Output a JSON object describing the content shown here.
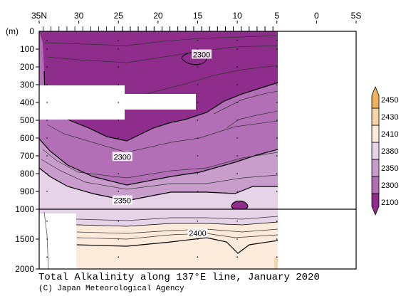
{
  "chart_data": {
    "type": "heatmap",
    "title": "Total Alkalinity along 137°E line, January 2020",
    "credit": "(C) Japan Meteorological Agency",
    "x_axis": {
      "ticks": [
        "35N",
        "30",
        "25",
        "20",
        "15",
        "10",
        "5",
        "0",
        "5S"
      ],
      "tick_values": [
        35,
        30,
        25,
        20,
        15,
        10,
        5,
        0,
        -5
      ],
      "range": [
        35,
        -5
      ]
    },
    "y_axis": {
      "unit_label": "(m)",
      "ticks": [
        "0",
        "100",
        "200",
        "300",
        "400",
        "500",
        "600",
        "700",
        "800",
        "900",
        "1000",
        "1500",
        "2000"
      ],
      "upper_panel_range": [
        0,
        1000
      ],
      "lower_panel_range": [
        1000,
        2000
      ]
    },
    "colorbar": {
      "levels": [
        "2100",
        "2300",
        "2350",
        "2380",
        "2410",
        "2430",
        "2450"
      ],
      "colors": [
        "#8e2d8c",
        "#b36fb6",
        "#c89ccb",
        "#e6d3e8",
        "#fceadb",
        "#f7d4a6",
        "#f0b15e"
      ]
    },
    "contour_labels": [
      {
        "text": "2300",
        "lat": 14.5,
        "depth": 130
      },
      {
        "text": "2300",
        "lat": 24.5,
        "depth": 705
      },
      {
        "text": "2350",
        "lat": 24.5,
        "depth": 950
      },
      {
        "text": "2400",
        "lat": 15,
        "depth": 1400
      }
    ],
    "station_latitudes": [
      34,
      25,
      15,
      10,
      5
    ]
  }
}
